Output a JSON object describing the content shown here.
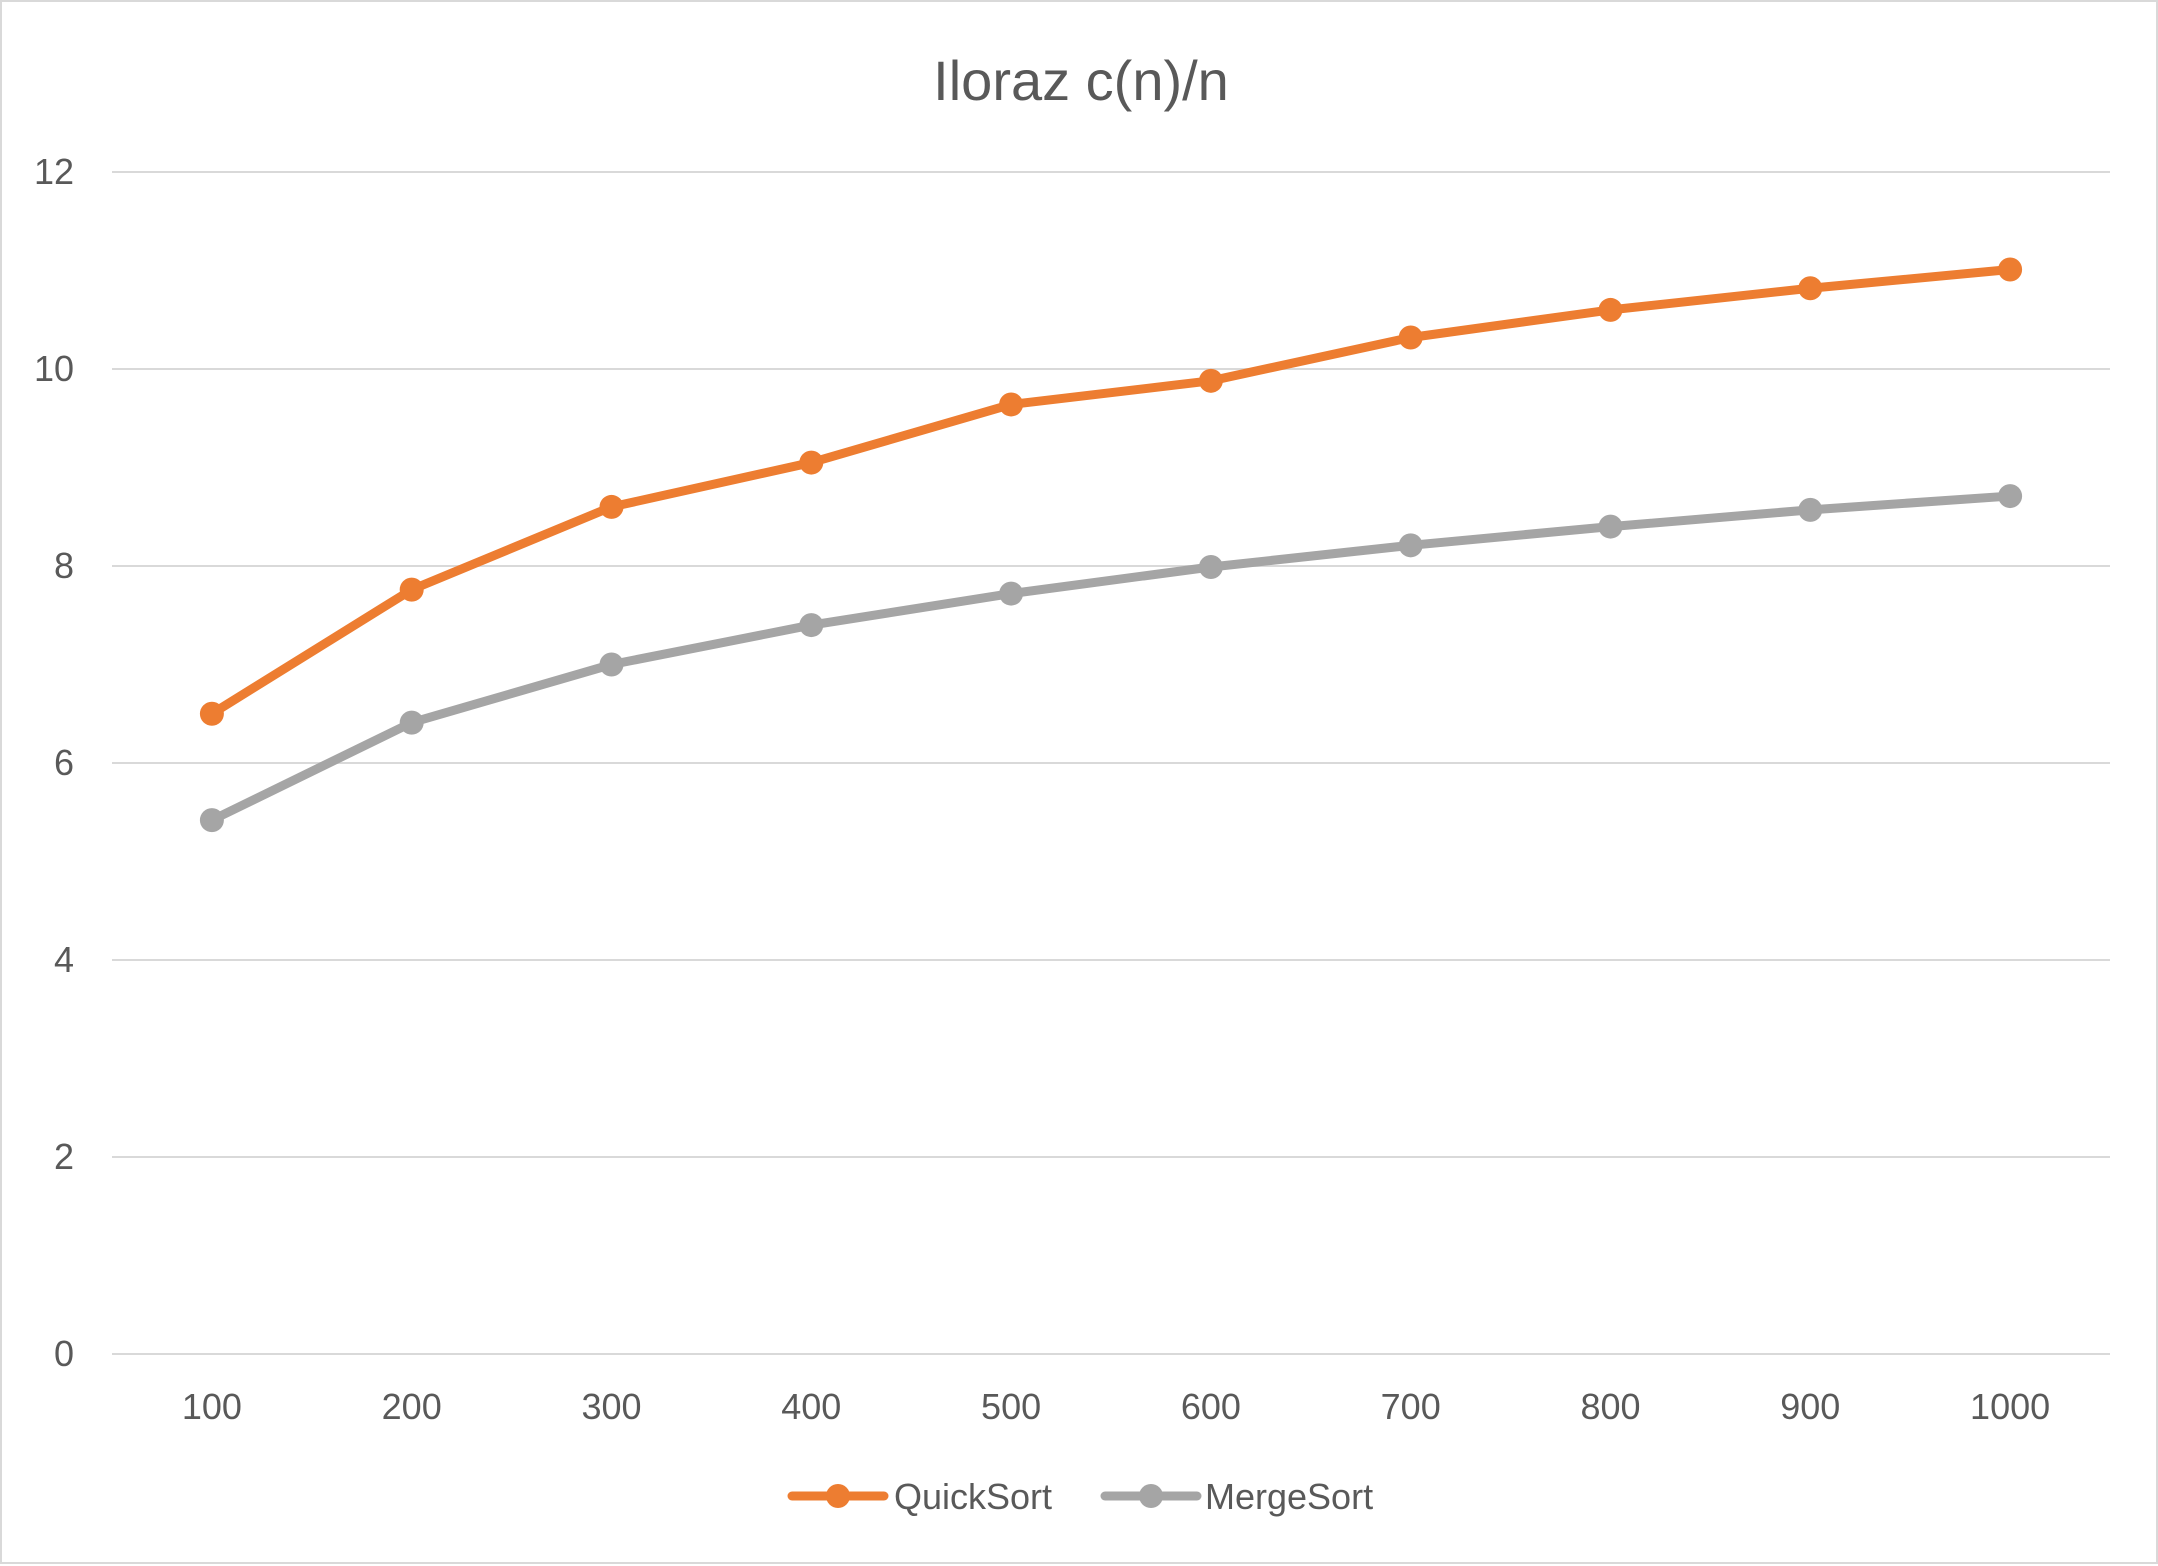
{
  "chart_data": {
    "type": "line",
    "title": "Iloraz c(n)/n",
    "xlabel": "",
    "ylabel": "",
    "categories": [
      "100",
      "200",
      "300",
      "400",
      "500",
      "600",
      "700",
      "800",
      "900",
      "1000"
    ],
    "ylim": [
      0,
      12
    ],
    "yticks": [
      "0",
      "2",
      "4",
      "6",
      "8",
      "10",
      "12"
    ],
    "grid": true,
    "legend_position": "bottom",
    "series": [
      {
        "name": "QuickSort",
        "color": "#ed7d31",
        "values": [
          6.5,
          7.76,
          8.6,
          9.05,
          9.64,
          9.88,
          10.32,
          10.6,
          10.82,
          11.01
        ]
      },
      {
        "name": "MergeSort",
        "color": "#a5a5a5",
        "values": [
          5.42,
          6.41,
          7.0,
          7.4,
          7.72,
          7.99,
          8.21,
          8.4,
          8.57,
          8.71
        ]
      }
    ]
  }
}
